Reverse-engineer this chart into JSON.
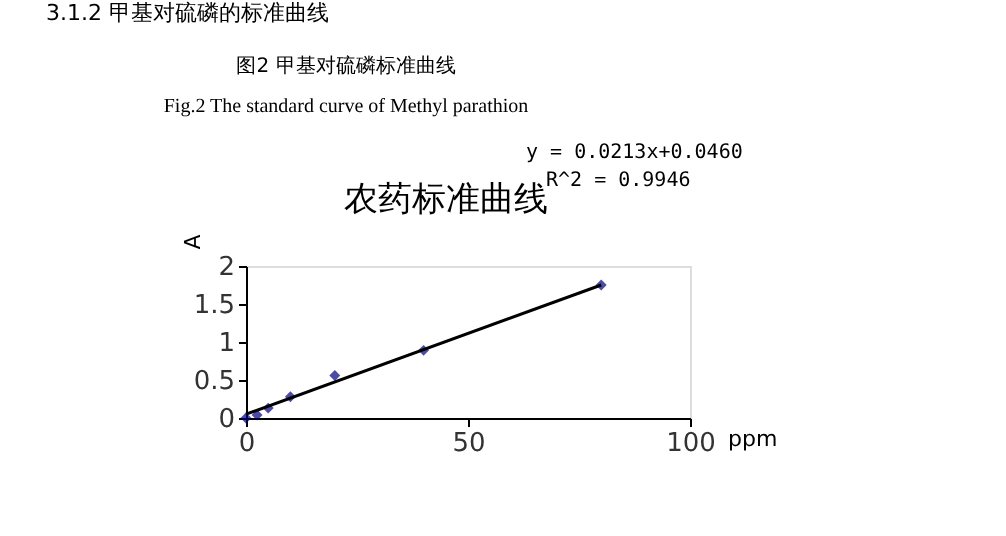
{
  "chart_data": {
    "type": "scatter",
    "title": "农药标准曲线",
    "xlabel": "ppm",
    "ylabel": "A",
    "annotations": [
      "3.1.2  甲基对硫磷的标准曲线",
      "图2  甲基对硫磷标准曲线",
      "Fig.2   The standard curve of Methyl parathion",
      "y = 0.0213x+0.0460",
      "R^2 = 0.9946"
    ],
    "series": [
      {
        "color": "#000080",
        "marker": "diamond",
        "x": [
          0,
          2.5,
          5,
          10,
          20,
          40,
          80
        ],
        "values": [
          0,
          0.04,
          0.13,
          0.28,
          0.56,
          0.89,
          1.75
        ]
      },
      {
        "type": "line",
        "color": "#000000",
        "marker": "none",
        "x": [
          0,
          80
        ],
        "values": [
          0.05,
          1.75
        ]
      }
    ],
    "xlim": [
      0,
      100
    ],
    "ylim": [
      0,
      2
    ],
    "xticks": [
      0,
      50,
      100
    ],
    "yticks": [
      0,
      0.5,
      1,
      1.5,
      2
    ],
    "grid": false
  }
}
